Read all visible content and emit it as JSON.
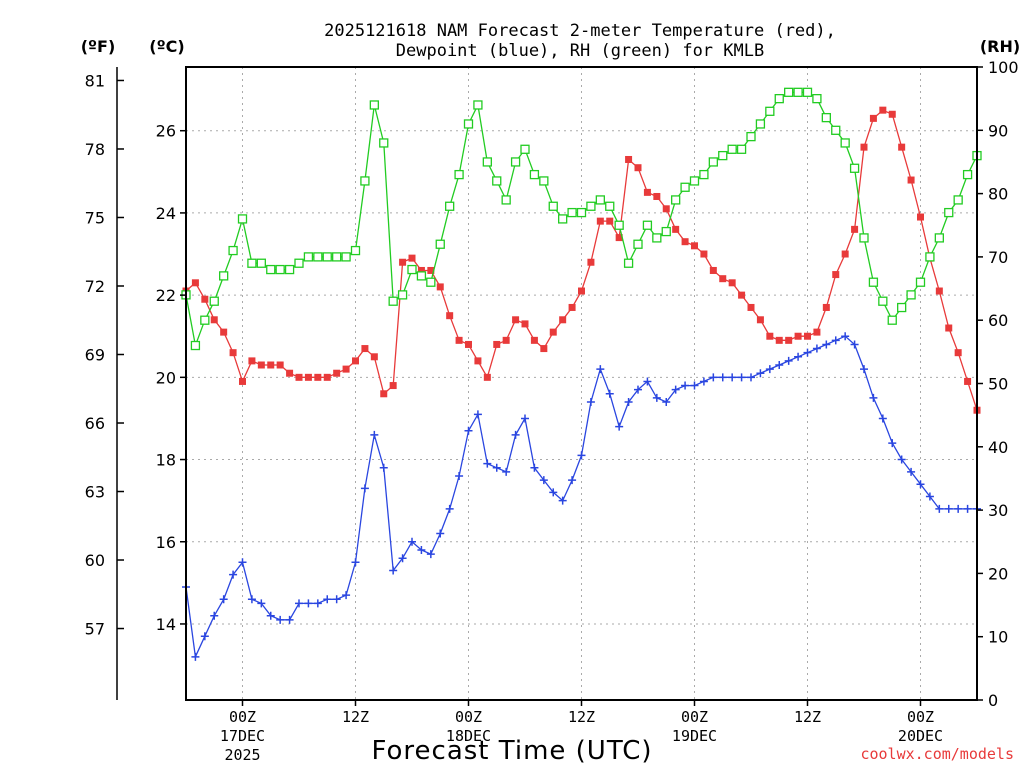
{
  "chart_data": {
    "type": "line",
    "title_line1": "2025121618 NAM Forecast 2-meter Temperature (red),",
    "title_line2": "Dewpoint (blue), RH (green) for KMLB",
    "xlabel": "Forecast Time (UTC)",
    "credit": "coolwx.com/models",
    "unit_f": "(ºF)",
    "unit_c": "(ºC)",
    "unit_rh": "(RH)",
    "x_hours_range": [
      -6,
      78
    ],
    "c_range": [
      12.15,
      27.55
    ],
    "rh_range": [
      0,
      100
    ],
    "f_ticks": [
      "57",
      "60",
      "63",
      "66",
      "69",
      "72",
      "75",
      "78",
      "81"
    ],
    "c_ticks": [
      "14",
      "16",
      "18",
      "20",
      "22",
      "24",
      "26"
    ],
    "rh_ticks": [
      "0",
      "10",
      "20",
      "30",
      "40",
      "50",
      "60",
      "70",
      "80",
      "90",
      "100"
    ],
    "x_ticks": [
      {
        "label": "00Z",
        "sub1": "17DEC",
        "sub2": "2025"
      },
      {
        "label": "12Z",
        "sub1": "",
        "sub2": ""
      },
      {
        "label": "00Z",
        "sub1": "18DEC",
        "sub2": ""
      },
      {
        "label": "12Z",
        "sub1": "",
        "sub2": ""
      },
      {
        "label": "00Z",
        "sub1": "19DEC",
        "sub2": ""
      },
      {
        "label": "12Z",
        "sub1": "",
        "sub2": ""
      },
      {
        "label": "00Z",
        "sub1": "20DEC",
        "sub2": ""
      }
    ],
    "x_tick_hours": [
      0,
      12,
      24,
      36,
      48,
      60,
      72
    ],
    "hours": [
      -6,
      -5,
      -4,
      -3,
      -2,
      -1,
      0,
      1,
      2,
      3,
      4,
      5,
      6,
      7,
      8,
      9,
      10,
      11,
      12,
      13,
      14,
      15,
      16,
      17,
      18,
      19,
      20,
      21,
      22,
      23,
      24,
      25,
      26,
      27,
      28,
      29,
      30,
      31,
      32,
      33,
      34,
      35,
      36,
      37,
      38,
      39,
      40,
      41,
      42,
      43,
      44,
      45,
      46,
      47,
      48,
      49,
      50,
      51,
      52,
      53,
      54,
      55,
      56,
      57,
      58,
      59,
      60,
      61,
      62,
      63,
      64,
      65,
      66,
      67,
      68,
      69,
      70,
      71,
      72,
      73,
      74,
      75,
      76,
      77,
      78
    ],
    "series": [
      {
        "name": "Temperature",
        "color": "#e83a3a",
        "marker": "filled-square",
        "axis": "C",
        "values": [
          22.1,
          22.3,
          21.9,
          21.4,
          21.1,
          20.6,
          19.9,
          20.4,
          20.3,
          20.3,
          20.3,
          20.1,
          20.0,
          20.0,
          20.0,
          20.0,
          20.1,
          20.2,
          20.4,
          20.7,
          20.5,
          19.6,
          19.8,
          22.8,
          22.9,
          22.6,
          22.6,
          22.2,
          21.5,
          20.9,
          20.8,
          20.4,
          20.0,
          20.8,
          20.9,
          21.4,
          21.3,
          20.9,
          20.7,
          21.1,
          21.4,
          21.7,
          22.1,
          22.8,
          23.8,
          23.8,
          23.4,
          25.3,
          25.1,
          24.5,
          24.4,
          24.1,
          23.6,
          23.3,
          23.2,
          23.0,
          22.6,
          22.4,
          22.3,
          22.0,
          21.7,
          21.4,
          21.0,
          20.9,
          20.9,
          21.0,
          21.0,
          21.1,
          21.7,
          22.5,
          23.0,
          23.6,
          25.6,
          26.3,
          26.5,
          26.4,
          25.6,
          24.8,
          23.9,
          22.9,
          22.1,
          21.2,
          20.6,
          19.9,
          19.2
        ]
      },
      {
        "name": "Dewpoint",
        "color": "#2a46e0",
        "marker": "plus",
        "axis": "C",
        "values": [
          14.9,
          13.2,
          13.7,
          14.2,
          14.6,
          15.2,
          15.5,
          14.6,
          14.5,
          14.2,
          14.1,
          14.1,
          14.5,
          14.5,
          14.5,
          14.6,
          14.6,
          14.7,
          15.5,
          17.3,
          18.6,
          17.8,
          15.3,
          15.6,
          16.0,
          15.8,
          15.7,
          16.2,
          16.8,
          17.6,
          18.7,
          19.1,
          17.9,
          17.8,
          17.7,
          18.6,
          19.0,
          17.8,
          17.5,
          17.2,
          17.0,
          17.5,
          18.1,
          19.4,
          20.2,
          19.6,
          18.8,
          19.4,
          19.7,
          19.9,
          19.5,
          19.4,
          19.7,
          19.8,
          19.8,
          19.9,
          20.0,
          20.0,
          20.0,
          20.0,
          20.0,
          20.1,
          20.2,
          20.3,
          20.4,
          20.5,
          20.6,
          20.7,
          20.8,
          20.9,
          21.0,
          20.8,
          20.2,
          19.5,
          19.0,
          18.4,
          18.0,
          17.7,
          17.4,
          17.1,
          16.8,
          16.8,
          16.8,
          16.8,
          16.8
        ]
      },
      {
        "name": "RH",
        "color": "#22cc22",
        "marker": "open-square",
        "axis": "RH",
        "values": [
          64,
          56,
          60,
          63,
          67,
          71,
          76,
          69,
          69,
          68,
          68,
          68,
          69,
          70,
          70,
          70,
          70,
          70,
          71,
          82,
          94,
          88,
          63,
          64,
          68,
          67,
          66,
          72,
          78,
          83,
          91,
          94,
          85,
          82,
          79,
          85,
          87,
          83,
          82,
          78,
          76,
          77,
          77,
          78,
          79,
          78,
          75,
          69,
          72,
          75,
          73,
          74,
          79,
          81,
          82,
          83,
          85,
          86,
          87,
          87,
          89,
          91,
          93,
          95,
          96,
          96,
          96,
          95,
          92,
          90,
          88,
          84,
          73,
          66,
          63,
          60,
          62,
          64,
          66,
          70,
          73,
          77,
          79,
          83,
          86
        ]
      }
    ]
  }
}
